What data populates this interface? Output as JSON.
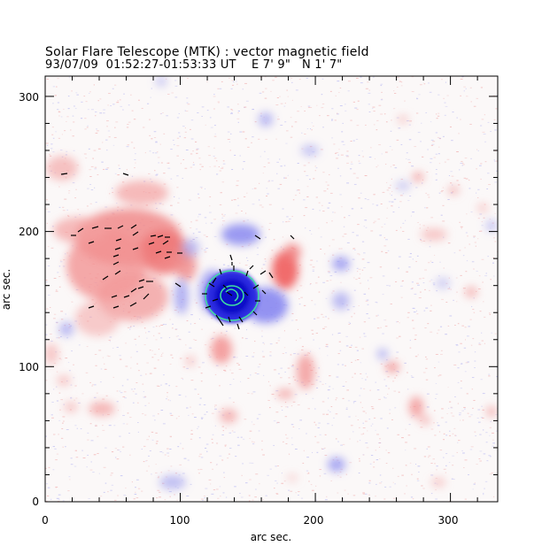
{
  "figure": {
    "title": "Solar Flare Telescope (MTK) : vector magnetic field",
    "subtitle": "93/07/09  01:52:27-01:53:33 UT    E 7' 9\"   N 1' 7\""
  },
  "chart_data": {
    "type": "heatmap",
    "title": "Solar Flare Telescope (MTK) : vector magnetic field",
    "xlabel": "arc sec.",
    "ylabel": "arc sec.",
    "xlim": [
      0,
      335
    ],
    "ylim": [
      0,
      315
    ],
    "xticks": [
      "0",
      "100",
      "200",
      "300"
    ],
    "yticks": [
      "0",
      "100",
      "200",
      "300"
    ],
    "grid": false,
    "colors": {
      "positive_polarity": "#f08080",
      "negative_polarity": "#8080f0",
      "strong_negative": "#1010d0",
      "transverse_vectors": "#000000",
      "contour": "#40e0a0"
    }
  }
}
